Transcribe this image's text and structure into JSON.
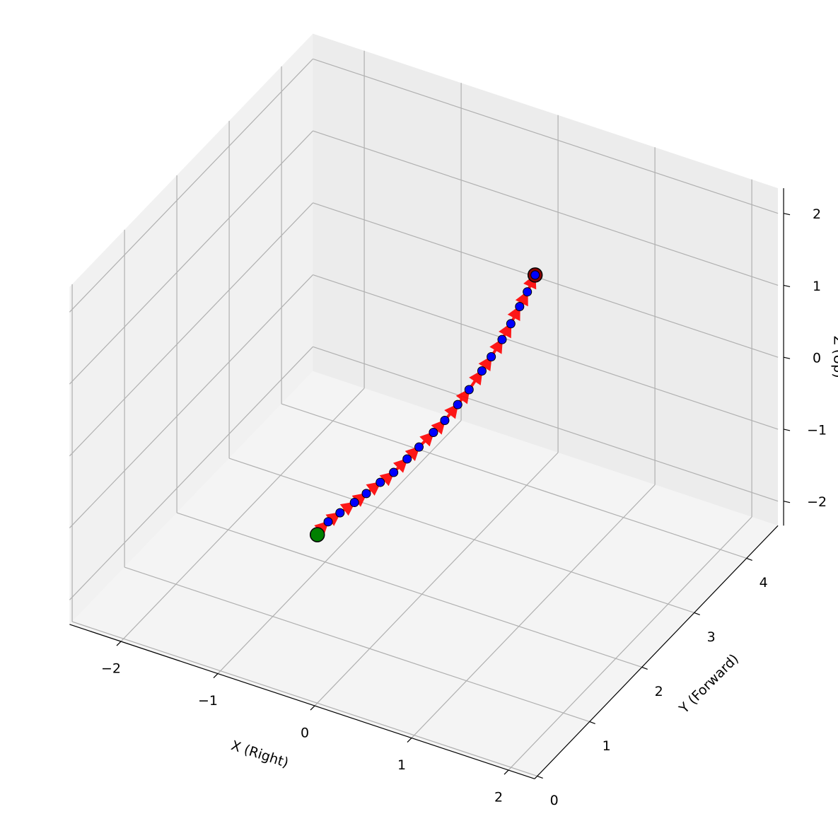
{
  "chart_data": {
    "type": "scatter3d",
    "xlabel": "X (Right)",
    "ylabel": "Y (Forward)",
    "zlabel": "Z (Up)",
    "x": [
      0,
      0.02,
      0.04,
      0.07,
      0.09,
      0.11,
      0.14,
      0.16,
      0.18,
      0.21,
      0.23,
      0.25,
      0.27,
      0.3,
      0.31,
      0.33,
      0.35,
      0.36,
      0.38,
      0.39
    ],
    "y": [
      0,
      0.17,
      0.36,
      0.58,
      0.77,
      1.0,
      1.2,
      1.42,
      1.61,
      1.83,
      2.01,
      2.22,
      2.4,
      2.59,
      2.75,
      2.92,
      3.05,
      3.2,
      3.31,
      3.44
    ],
    "z": [
      0,
      0.06,
      0.05,
      0.04,
      0.03,
      0.02,
      0.02,
      0.05,
      0.08,
      0.13,
      0.17,
      0.24,
      0.32,
      0.45,
      0.53,
      0.65,
      0.78,
      0.91,
      1.04,
      1.18
    ],
    "xlim": [
      -2.53,
      2.27
    ],
    "ylim": [
      -0.05,
      4.6
    ],
    "zlim": [
      -2.34,
      2.35
    ],
    "xticks": [
      {
        "value": -2,
        "label": "−2"
      },
      {
        "value": -1,
        "label": "−1"
      },
      0,
      1,
      2
    ],
    "yticks": [
      0,
      1,
      2,
      3,
      4
    ],
    "zticks": [
      {
        "value": -2,
        "label": "−2"
      },
      {
        "value": -1,
        "label": "−1"
      },
      0,
      1,
      2
    ],
    "color": "#0000ff",
    "start_color": "#008000",
    "end_color": "#8b0000",
    "arrow_color": "#ff0000",
    "grid": true
  }
}
